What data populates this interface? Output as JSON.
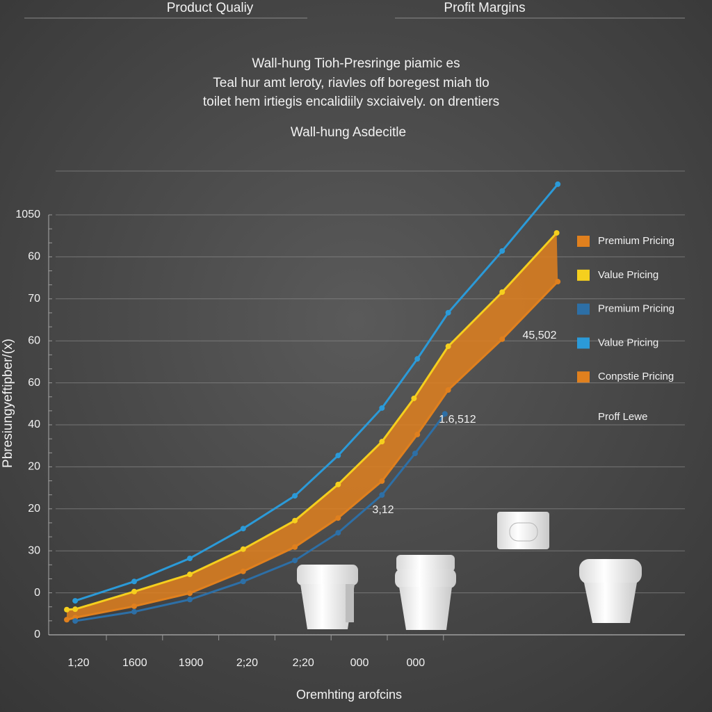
{
  "header": {
    "left": "Product Qualiy",
    "right": "Profit Margins"
  },
  "description": [
    "Wall-hung Tioh-Presringe piamic es",
    "Teal hur amt leroty, riavles off boregest miah tlo",
    "toilet hem irtiegis encalidiily sxciaively. on drentiers"
  ],
  "chart_data": {
    "type": "line",
    "title": "Wall-hung Asdecitle",
    "y_label": "Pbresiungyeftipber/(x)",
    "x_label": "Oremhting arofcins",
    "categories": [
      "1;20",
      "1600",
      "1900",
      "2;20",
      "2;20",
      "000",
      "000"
    ],
    "y_axis_labels": [
      "0",
      "0",
      "30",
      "20",
      "20",
      "40",
      "60",
      "60",
      "70",
      "60",
      "1050"
    ],
    "ylim": [
      0,
      10
    ],
    "series": [
      {
        "name": "Premium Pricing",
        "color": "#e0801e",
        "x": [
          -0.21,
          -0.06,
          0.99,
          1.98,
          2.93,
          3.85,
          4.62,
          5.4,
          6.03,
          6.58,
          7.54,
          8.53
        ],
        "values": [
          0.36,
          0.41,
          0.68,
          0.99,
          1.51,
          2.09,
          2.78,
          3.66,
          4.77,
          5.83,
          7.04,
          8.41
        ]
      },
      {
        "name": "Value Pricing",
        "color": "#f5cf1e",
        "x": [
          -0.21,
          -0.06,
          0.99,
          1.98,
          2.93,
          3.85,
          4.62,
          5.4,
          5.97,
          6.58,
          7.54,
          8.51
        ],
        "values": [
          0.6,
          0.61,
          1.03,
          1.44,
          2.04,
          2.72,
          3.58,
          4.6,
          5.63,
          6.87,
          8.16,
          9.57
        ]
      },
      {
        "name": "Premium Pricing",
        "color": "#2d6fa6",
        "x": [
          -0.06,
          0.99,
          1.98,
          2.93,
          3.85,
          4.62,
          5.4,
          5.99,
          6.52
        ],
        "values": [
          0.33,
          0.55,
          0.84,
          1.27,
          1.77,
          2.43,
          3.33,
          4.32,
          5.26
        ]
      },
      {
        "name": "Value Pricing",
        "color": "#2b9ad8",
        "x": [
          -0.06,
          0.99,
          1.98,
          2.93,
          3.85,
          4.62,
          5.4,
          6.03,
          6.58,
          7.54,
          8.53
        ],
        "values": [
          0.81,
          1.27,
          1.82,
          2.53,
          3.31,
          4.27,
          5.4,
          6.57,
          7.67,
          9.14,
          10.73
        ]
      }
    ],
    "area": {
      "name": "Conpstie Pricing",
      "color": "#e0801e"
    },
    "legend_note": "Proff Lewe",
    "annotations": [
      "45,502",
      "1.6,512",
      "3,12"
    ]
  }
}
